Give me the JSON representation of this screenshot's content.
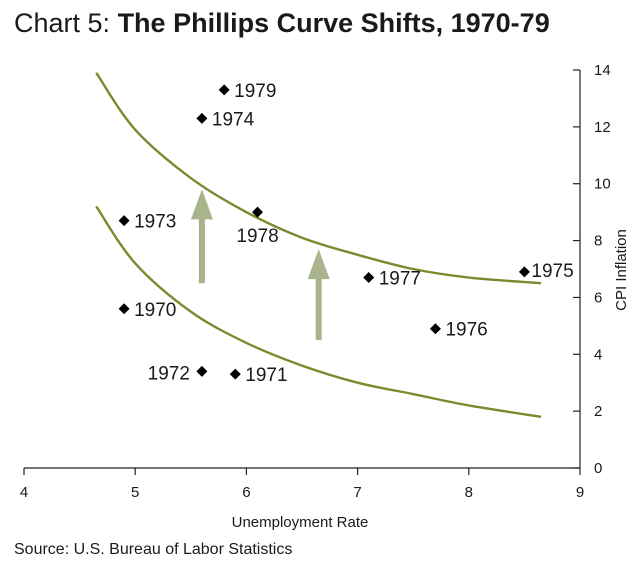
{
  "title": {
    "prefix": "Chart 5:",
    "main": "The Phillips Curve Shifts, 1970-79"
  },
  "source": "Source: U.S. Bureau of Labor Statistics",
  "colors": {
    "curve": "#7a8a2e",
    "arrow": "#a9b48c",
    "point": "#000000"
  },
  "chart_data": {
    "type": "scatter",
    "xlabel": "Unemployment Rate",
    "ylabel": "CPI Inflation",
    "xlim": [
      4,
      9
    ],
    "ylim": [
      0,
      14
    ],
    "xticks": [
      4,
      5,
      6,
      7,
      8,
      9
    ],
    "yticks": [
      0,
      2,
      4,
      6,
      8,
      10,
      12,
      14
    ],
    "y_axis_side": "right",
    "grid": false,
    "points": [
      {
        "label": "1970",
        "x": 4.9,
        "y": 5.6
      },
      {
        "label": "1971",
        "x": 5.9,
        "y": 3.3
      },
      {
        "label": "1972",
        "x": 5.6,
        "y": 3.4
      },
      {
        "label": "1973",
        "x": 4.9,
        "y": 8.7
      },
      {
        "label": "1974",
        "x": 5.6,
        "y": 12.3
      },
      {
        "label": "1975",
        "x": 8.5,
        "y": 6.9
      },
      {
        "label": "1976",
        "x": 7.7,
        "y": 4.9
      },
      {
        "label": "1977",
        "x": 7.1,
        "y": 6.7
      },
      {
        "label": "1978",
        "x": 6.1,
        "y": 9.0
      },
      {
        "label": "1979",
        "x": 5.8,
        "y": 13.3
      }
    ],
    "curves": [
      {
        "points": [
          [
            4.65,
            13.9
          ],
          [
            5.0,
            11.9
          ],
          [
            5.5,
            10.2
          ],
          [
            6.0,
            9.0
          ],
          [
            6.5,
            8.1
          ],
          [
            7.0,
            7.5
          ],
          [
            7.5,
            7.0
          ],
          [
            8.0,
            6.7
          ],
          [
            8.65,
            6.5
          ]
        ]
      },
      {
        "points": [
          [
            4.65,
            9.2
          ],
          [
            5.0,
            7.2
          ],
          [
            5.5,
            5.5
          ],
          [
            6.0,
            4.4
          ],
          [
            6.5,
            3.6
          ],
          [
            7.0,
            3.0
          ],
          [
            7.5,
            2.6
          ],
          [
            8.0,
            2.2
          ],
          [
            8.65,
            1.8
          ]
        ]
      }
    ],
    "arrows": [
      {
        "x": 5.6,
        "y_from": 6.5,
        "y_to": 9.8
      },
      {
        "x": 6.65,
        "y_from": 4.5,
        "y_to": 7.7
      }
    ]
  }
}
